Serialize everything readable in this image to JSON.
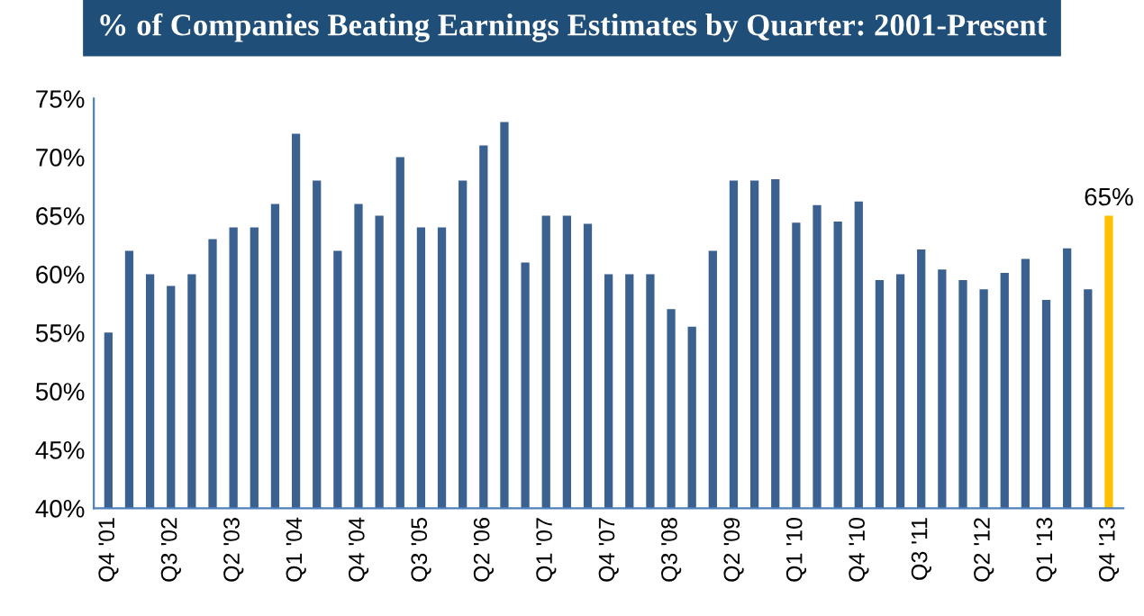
{
  "chart_data": {
    "type": "bar",
    "title": "% of Companies Beating Earnings Estimates by Quarter: 2001-Present",
    "categories": [
      "Q4 '01",
      null,
      null,
      "Q3 '02",
      null,
      null,
      "Q2 '03",
      null,
      null,
      "Q1 '04",
      null,
      null,
      "Q4 '04",
      null,
      null,
      "Q3 '05",
      null,
      null,
      "Q2 '06",
      null,
      null,
      "Q1 '07",
      null,
      null,
      "Q4 '07",
      null,
      null,
      "Q3 '08",
      null,
      null,
      "Q2 '09",
      null,
      null,
      "Q1 '10",
      null,
      null,
      "Q4 '10",
      null,
      null,
      "Q3 '11",
      null,
      null,
      "Q2 '12",
      null,
      null,
      "Q1 '13",
      null,
      null,
      "Q4 '13"
    ],
    "values": [
      55,
      62,
      60,
      59,
      60,
      63,
      64,
      64,
      66,
      72,
      68,
      62,
      66,
      65,
      70,
      64,
      64,
      68,
      71,
      73,
      61,
      65,
      65,
      64.3,
      60,
      60,
      60,
      57,
      55.5,
      62,
      68,
      68,
      68.1,
      64.4,
      65.9,
      64.5,
      66.2,
      59.5,
      60,
      62.1,
      60.4,
      59.5,
      58.7,
      60.1,
      61.3,
      57.8,
      62.2,
      58.7,
      65
    ],
    "colors": [
      "#3a6190",
      "#3a6190",
      "#3a6190",
      "#3a6190",
      "#3a6190",
      "#3a6190",
      "#3a6190",
      "#3a6190",
      "#3a6190",
      "#3a6190",
      "#3a6190",
      "#3a6190",
      "#3a6190",
      "#3a6190",
      "#3a6190",
      "#3a6190",
      "#3a6190",
      "#3a6190",
      "#3a6190",
      "#3a6190",
      "#3a6190",
      "#3a6190",
      "#3a6190",
      "#3a6190",
      "#3a6190",
      "#3a6190",
      "#3a6190",
      "#3a6190",
      "#3a6190",
      "#3a6190",
      "#3a6190",
      "#3a6190",
      "#3a6190",
      "#3a6190",
      "#3a6190",
      "#3a6190",
      "#3a6190",
      "#3a6190",
      "#3a6190",
      "#3a6190",
      "#3a6190",
      "#3a6190",
      "#3a6190",
      "#3a6190",
      "#3a6190",
      "#3a6190",
      "#3a6190",
      "#3a6190",
      "#ffc000"
    ],
    "value_labels": [
      null,
      null,
      null,
      null,
      null,
      null,
      null,
      null,
      null,
      null,
      null,
      null,
      null,
      null,
      null,
      null,
      null,
      null,
      null,
      null,
      null,
      null,
      null,
      null,
      null,
      null,
      null,
      null,
      null,
      null,
      null,
      null,
      null,
      null,
      null,
      null,
      null,
      null,
      null,
      null,
      null,
      null,
      null,
      null,
      null,
      null,
      null,
      null,
      "65%"
    ],
    "ylim": [
      40,
      75
    ],
    "yticks": [
      {
        "value": 40,
        "label": "40%"
      },
      {
        "value": 45,
        "label": "45%"
      },
      {
        "value": 50,
        "label": "50%"
      },
      {
        "value": 55,
        "label": "55%"
      },
      {
        "value": 60,
        "label": "60%"
      },
      {
        "value": 65,
        "label": "65%"
      },
      {
        "value": 70,
        "label": "70%"
      },
      {
        "value": 75,
        "label": "75%"
      }
    ],
    "grid": false
  }
}
